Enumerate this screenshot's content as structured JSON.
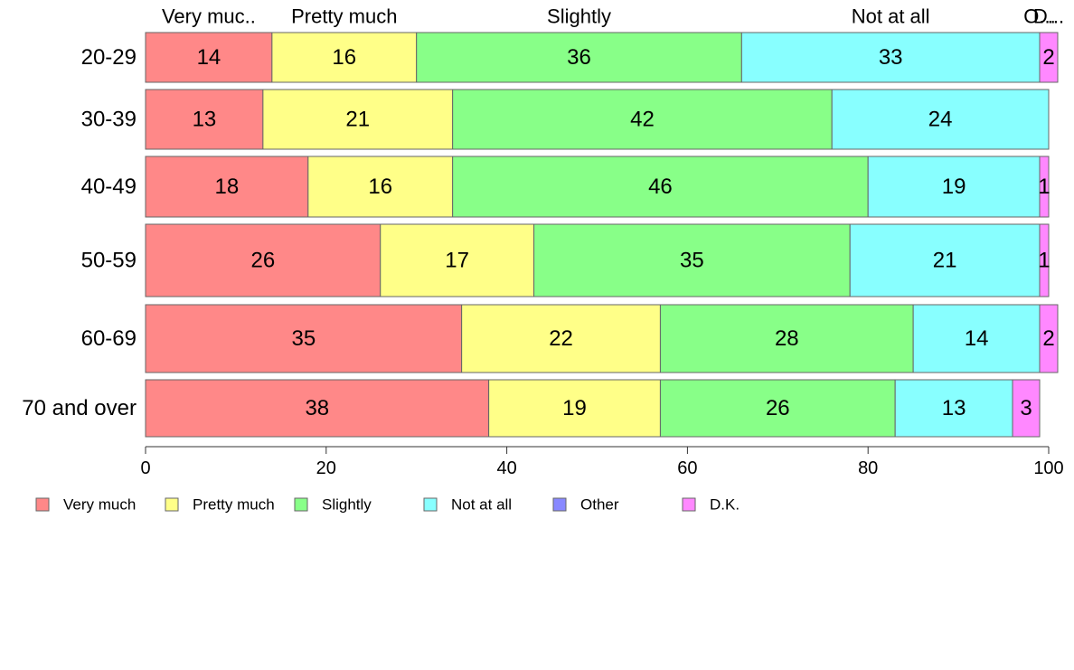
{
  "chart_data": {
    "type": "bar",
    "orientation": "horizontal",
    "stacked": true,
    "categories": [
      "20-29",
      "30-39",
      "40-49",
      "50-59",
      "60-69",
      "70 and over"
    ],
    "series": [
      {
        "name": "Very much",
        "color": "#ff8888",
        "values": [
          14,
          13,
          18,
          26,
          35,
          38
        ]
      },
      {
        "name": "Pretty much",
        "color": "#ffff88",
        "values": [
          16,
          21,
          16,
          17,
          22,
          19
        ]
      },
      {
        "name": "Slightly",
        "color": "#88ff88",
        "values": [
          36,
          42,
          46,
          35,
          28,
          26
        ]
      },
      {
        "name": "Not at all",
        "color": "#88ffff",
        "values": [
          33,
          24,
          19,
          21,
          14,
          13
        ]
      },
      {
        "name": "Other",
        "color": "#8888ff",
        "values": [
          0,
          0,
          0,
          0,
          0,
          0
        ]
      },
      {
        "name": "D.K.",
        "color": "#ff88ff",
        "values": [
          2,
          0,
          1,
          1,
          2,
          3
        ]
      }
    ],
    "top_labels": [
      "Very muc..",
      "Pretty much",
      "Slightly",
      "Not at all",
      "O...",
      "D..."
    ],
    "xlim": [
      0,
      100
    ],
    "xticks": [
      0,
      20,
      40,
      60,
      80,
      100
    ],
    "grid": false,
    "legend_position": "bottom-left"
  }
}
